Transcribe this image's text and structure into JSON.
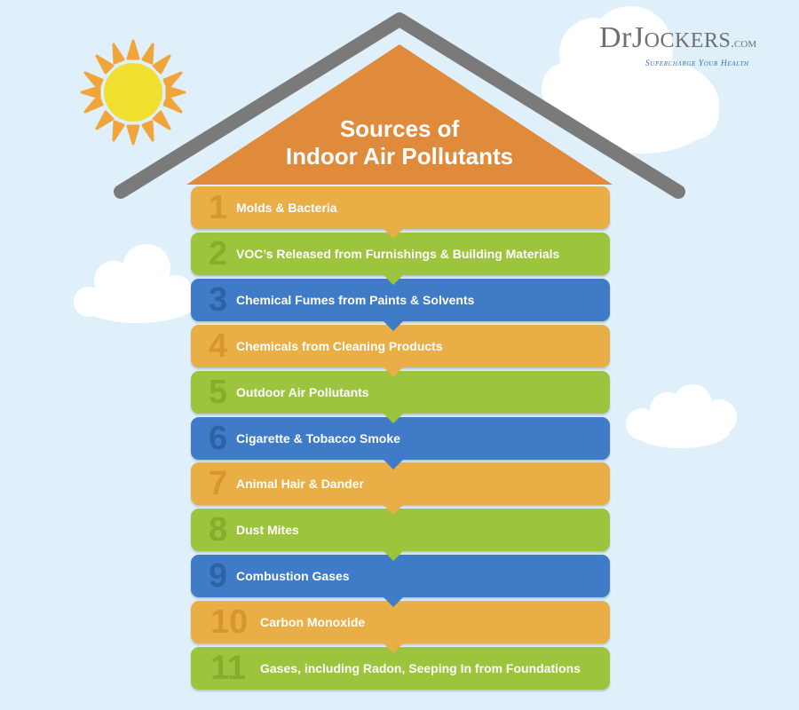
{
  "brand": {
    "name_part1": "DrJ",
    "name_part2": "ockers",
    "domain": ".com",
    "tagline": "Supercharge Your Health"
  },
  "title": {
    "line1": "Sources of",
    "line2": "Indoor Air Pollutants"
  },
  "items": [
    {
      "number": "1",
      "label": "Molds & Bacteria",
      "color": "orange"
    },
    {
      "number": "2",
      "label": "VOC’s Released from Furnishings & Building Materials",
      "color": "green"
    },
    {
      "number": "3",
      "label": "Chemical Fumes from Paints & Solvents",
      "color": "blue"
    },
    {
      "number": "4",
      "label": "Chemicals from Cleaning Products",
      "color": "orange"
    },
    {
      "number": "5",
      "label": "Outdoor Air Pollutants",
      "color": "green"
    },
    {
      "number": "6",
      "label": "Cigarette & Tobacco Smoke",
      "color": "blue"
    },
    {
      "number": "7",
      "label": "Animal Hair & Dander",
      "color": "orange"
    },
    {
      "number": "8",
      "label": "Dust Mites",
      "color": "green"
    },
    {
      "number": "9",
      "label": "Combustion Gases",
      "color": "blue"
    },
    {
      "number": "10",
      "label": "Carbon Monoxide",
      "color": "orange"
    },
    {
      "number": "11",
      "label": "Gases, including Radon, Seeping In from Foundations",
      "color": "green"
    }
  ],
  "colors": {
    "sky": "#dff0fb",
    "roof_fill": "#e08a3c",
    "roof_outline": "#7a7a7a",
    "sun": "#f2e030",
    "sun_rays": "#f0a43a",
    "orange": "#eaae47",
    "green": "#9cc43c",
    "blue": "#3f7bc6",
    "brand_text": "#6f6f6f",
    "brand_tagline": "#2f6fbe"
  }
}
